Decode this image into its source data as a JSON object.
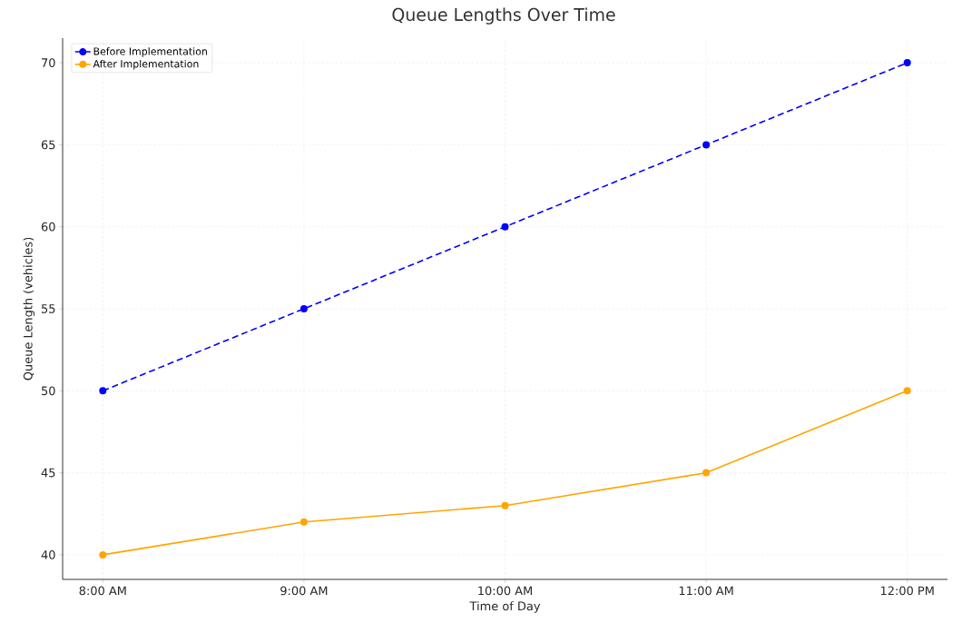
{
  "chart_data": {
    "type": "line",
    "title": "Queue Lengths Over Time",
    "xlabel": "Time of Day",
    "ylabel": "Queue Length (vehicles)",
    "categories": [
      "8:00 AM",
      "9:00 AM",
      "10:00 AM",
      "11:00 AM",
      "12:00 PM"
    ],
    "series": [
      {
        "name": "Before Implementation",
        "color": "#0000ff",
        "values": [
          50,
          55,
          60,
          65,
          70
        ],
        "line_style": "dashed"
      },
      {
        "name": "After Implementation",
        "color": "#ffa500",
        "values": [
          40,
          42,
          43,
          45,
          50
        ],
        "line_style": "solid"
      }
    ],
    "ylim": [
      38.5,
      71.5
    ],
    "yticks": [
      40,
      45,
      50,
      55,
      60,
      65,
      70
    ],
    "grid": true,
    "legend": "top left",
    "marker": "circle"
  }
}
